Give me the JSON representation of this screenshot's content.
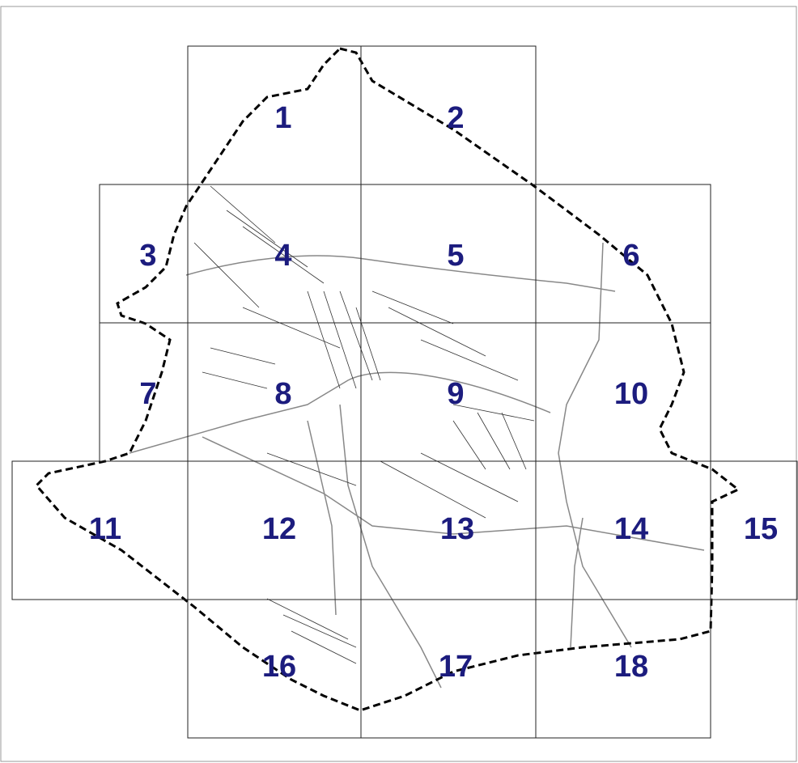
{
  "map": {
    "tiles": [
      "1",
      "2",
      "3",
      "4",
      "5",
      "6",
      "7",
      "8",
      "9",
      "10",
      "11",
      "12",
      "13",
      "14",
      "15",
      "16",
      "17",
      "18"
    ]
  }
}
